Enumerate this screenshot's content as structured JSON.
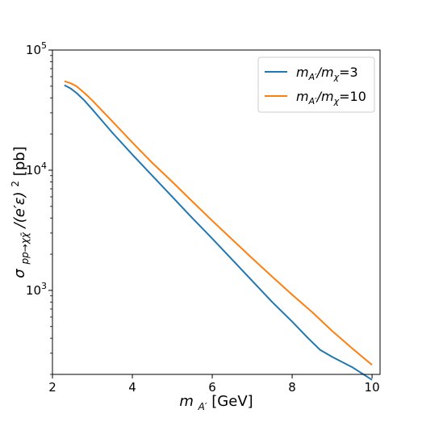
{
  "chart_data": {
    "type": "line",
    "xlabel_main": "m",
    "xlabel_sub": "A′",
    "xlabel_unit": "[GeV]",
    "ylabel_main": "σ",
    "ylabel_sub": "pp→χχ̄",
    "ylabel_mid": "/(e′ε)",
    "ylabel_sup": "2",
    "ylabel_unit": "[pb]",
    "xlim": [
      2,
      10.2
    ],
    "ylim": [
      200,
      100000
    ],
    "yscale": "log",
    "grid": false,
    "legend_position": "top-right",
    "x_ticks": [
      2,
      4,
      6,
      8,
      10
    ],
    "x_tick_labels": [
      "2",
      "4",
      "6",
      "8",
      "10"
    ],
    "y_ticks": [
      1000,
      10000,
      100000
    ],
    "y_tick_bases": [
      "10",
      "10",
      "10"
    ],
    "y_tick_exponents": [
      "3",
      "4",
      "5"
    ],
    "series": [
      {
        "name_main": "m",
        "name_sub1": "A′",
        "name_mid": "/m",
        "name_sub2": "χ",
        "name_tail": "=3",
        "color": "#1f77b4",
        "x": [
          2.3,
          2.45,
          2.6,
          2.8,
          3.0,
          3.5,
          4.0,
          4.5,
          5.0,
          5.5,
          6.0,
          6.5,
          7.0,
          7.5,
          8.0,
          8.4,
          8.7,
          9.0,
          9.5,
          10.0
        ],
        "y": [
          51000,
          48000,
          44000,
          38000,
          32000,
          20500,
          13500,
          9000,
          6000,
          4000,
          2700,
          1800,
          1200,
          800,
          550,
          400,
          320,
          280,
          230,
          180
        ]
      },
      {
        "name_main": "m",
        "name_sub1": "A′",
        "name_mid": "/m",
        "name_sub2": "χ",
        "name_tail": "=10",
        "color": "#ff7f0e",
        "x": [
          2.3,
          2.45,
          2.6,
          2.8,
          3.0,
          3.5,
          4.0,
          4.5,
          5.0,
          5.5,
          6.0,
          6.5,
          7.0,
          7.5,
          8.0,
          8.5,
          9.0,
          9.5,
          10.0
        ],
        "y": [
          55000,
          53000,
          50000,
          44000,
          38000,
          25500,
          17000,
          11500,
          8000,
          5500,
          3800,
          2650,
          1850,
          1300,
          920,
          660,
          460,
          330,
          240
        ]
      }
    ]
  }
}
